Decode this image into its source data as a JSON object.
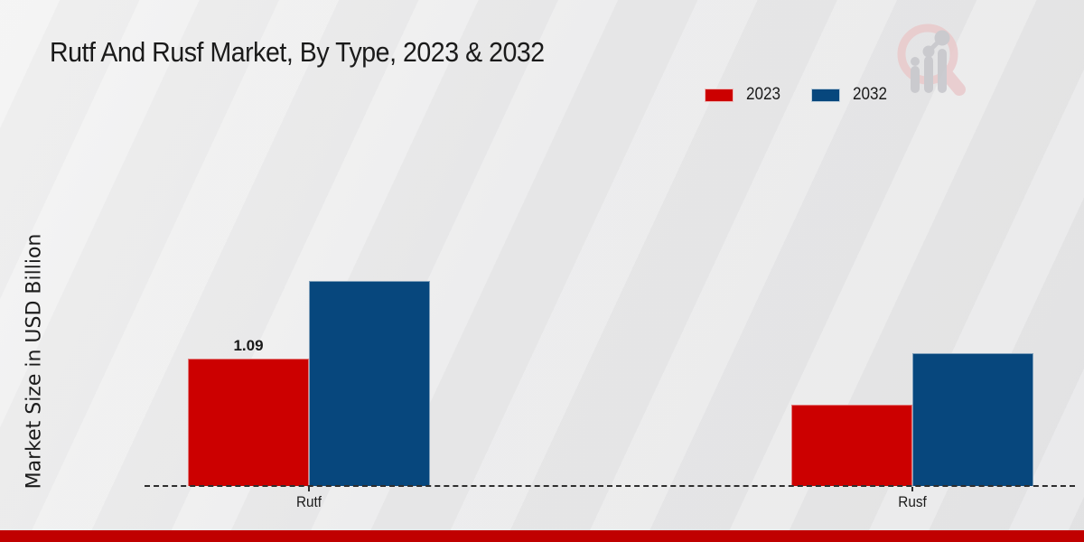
{
  "chart_data": {
    "type": "bar",
    "title": "Rutf And Rusf Market, By Type, 2023 & 2032",
    "ylabel": "Market Size in USD Billion",
    "xlabel": "",
    "categories": [
      "Rutf",
      "Rusf"
    ],
    "series": [
      {
        "name": "2023",
        "color": "#cc0000",
        "values": [
          1.09,
          0.7
        ]
      },
      {
        "name": "2032",
        "color": "#07477d",
        "values": [
          1.76,
          1.14
        ]
      }
    ],
    "annotation": {
      "text": "1.09",
      "category": "Rutf",
      "series": "2023"
    },
    "ylim": [
      0,
      2
    ],
    "grid": false,
    "legend_position": "top-right",
    "baseline_style": "dashed"
  },
  "branding": {
    "footer_color": "#c00000",
    "logo": "bar-chart-magnifier-watermark",
    "logo_ring_color": "#e9c9cb",
    "logo_bar_color": "#c6c6cb"
  }
}
